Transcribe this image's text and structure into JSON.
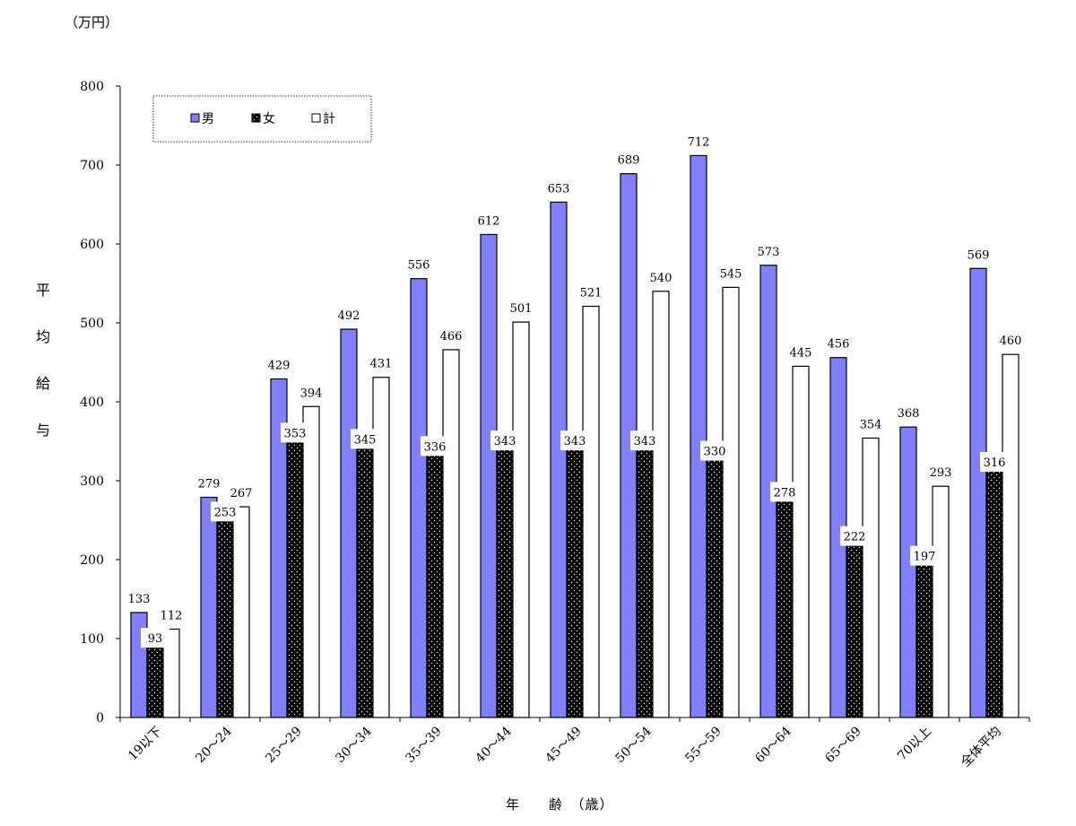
{
  "chart_data": {
    "type": "bar",
    "unit_label": "（万円）",
    "ylabel": "平均給与",
    "xlabel": "年　　齢　（歳）",
    "ylim": [
      0,
      800
    ],
    "yticks": [
      0,
      100,
      200,
      300,
      400,
      500,
      600,
      700,
      800
    ],
    "legend_position": "top-left",
    "grid": false,
    "categories": [
      "19以下",
      "20～24",
      "25～29",
      "30～34",
      "35～39",
      "40～44",
      "45～49",
      "50～54",
      "55～59",
      "60～64",
      "65～69",
      "70以上",
      "全体平均"
    ],
    "series": [
      {
        "name": "男",
        "color": "#8080ff",
        "values": [
          133,
          279,
          429,
          492,
          556,
          612,
          653,
          689,
          712,
          573,
          456,
          368,
          569
        ]
      },
      {
        "name": "女",
        "color": "#000000",
        "pattern": "dots",
        "values": [
          93,
          253,
          353,
          345,
          336,
          343,
          343,
          343,
          330,
          278,
          222,
          197,
          316
        ]
      },
      {
        "name": "計",
        "color": "#ffffff",
        "values": [
          112,
          267,
          394,
          431,
          466,
          501,
          521,
          540,
          545,
          445,
          354,
          293,
          460
        ]
      }
    ]
  }
}
